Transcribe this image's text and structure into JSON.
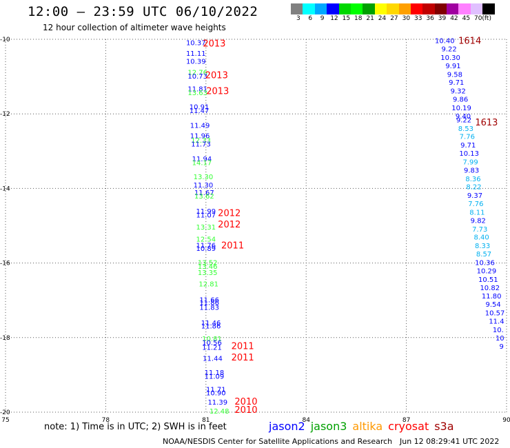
{
  "header": {
    "title": "12:00 – 23:59 UTC 06/10/2022",
    "subtitle": "12 hour collection of altimeter wave heights"
  },
  "legend": {
    "colors": [
      "#808080",
      "#00ffff",
      "#00a8ff",
      "#0000ff",
      "#00d800",
      "#00ff00",
      "#00a000",
      "#ffff00",
      "#ffd800",
      "#ffa000",
      "#ff0000",
      "#c00000",
      "#800000",
      "#a000a0",
      "#ff80ff",
      "#e0c0ff",
      "#000000"
    ],
    "labels": [
      "3",
      "6",
      "9",
      "12",
      "15",
      "18",
      "21",
      "24",
      "27",
      "30",
      "33",
      "36",
      "39",
      "42",
      "45",
      "70",
      "(ft)"
    ]
  },
  "footer": {
    "note": "note:  1) Time is in UTC;  2) SWH is in feet",
    "satellites": [
      {
        "name": "jason2",
        "color": "#0000ff"
      },
      {
        "name": "jason3",
        "color": "#00a000"
      },
      {
        "name": "altika",
        "color": "#ff9900"
      },
      {
        "name": "cryosat",
        "color": "#ff0000"
      },
      {
        "name": "s3a",
        "color": "#a00000"
      }
    ],
    "credit": "NOAA/NESDIS Center for Satellite Applications and Research",
    "timestamp": "Jun 12 08:29:41 UTC 2022"
  },
  "chart_data": {
    "type": "scatter",
    "xlim": [
      75,
      90
    ],
    "ylim": [
      -20,
      -10
    ],
    "xticks": [
      75,
      78,
      81,
      84,
      87,
      90
    ],
    "yticks": [
      -10,
      -12,
      -14,
      -16,
      -18,
      -20
    ],
    "grid": true,
    "points": [
      {
        "lon": 80.7,
        "lat": -10.08,
        "v": "10.37",
        "c": "#0000ff"
      },
      {
        "lon": 80.7,
        "lat": -10.37,
        "v": "11.11",
        "c": "#0000ff"
      },
      {
        "lon": 80.7,
        "lat": -10.58,
        "v": "10.39",
        "c": "#0000ff"
      },
      {
        "lon": 80.75,
        "lat": -10.88,
        "v": "12.76",
        "c": "#33ff33"
      },
      {
        "lon": 80.75,
        "lat": -10.98,
        "v": "10.73",
        "c": "#0000ff"
      },
      {
        "lon": 80.75,
        "lat": -11.32,
        "v": "11.81",
        "c": "#0000ff"
      },
      {
        "lon": 80.75,
        "lat": -11.42,
        "v": "13.63",
        "c": "#33ff33"
      },
      {
        "lon": 80.8,
        "lat": -11.8,
        "v": "10.91",
        "c": "#0000ff"
      },
      {
        "lon": 80.8,
        "lat": -11.9,
        "v": "11.47",
        "c": "#0000ff"
      },
      {
        "lon": 80.82,
        "lat": -12.3,
        "v": "11.49",
        "c": "#0000ff"
      },
      {
        "lon": 80.82,
        "lat": -12.58,
        "v": "11.96",
        "c": "#0000ff"
      },
      {
        "lon": 80.85,
        "lat": -12.7,
        "v": "12.33",
        "c": "#33ff33"
      },
      {
        "lon": 80.85,
        "lat": -12.8,
        "v": "11.73",
        "c": "#0000ff"
      },
      {
        "lon": 80.88,
        "lat": -13.2,
        "v": "11.94",
        "c": "#0000ff"
      },
      {
        "lon": 80.88,
        "lat": -13.3,
        "v": "14.17",
        "c": "#33ff33"
      },
      {
        "lon": 80.92,
        "lat": -13.68,
        "v": "13.30",
        "c": "#33ff33"
      },
      {
        "lon": 80.92,
        "lat": -13.9,
        "v": "11.30",
        "c": "#0000ff"
      },
      {
        "lon": 80.95,
        "lat": -14.1,
        "v": "11.67",
        "c": "#0000ff"
      },
      {
        "lon": 80.95,
        "lat": -14.2,
        "v": "13.62",
        "c": "#33ff33"
      },
      {
        "lon": 81.0,
        "lat": -14.6,
        "v": "11.99",
        "c": "#0000ff"
      },
      {
        "lon": 81.0,
        "lat": -14.7,
        "v": "11.07",
        "c": "#0000ff"
      },
      {
        "lon": 81.0,
        "lat": -15.03,
        "v": "13.31",
        "c": "#33ff33"
      },
      {
        "lon": 81.0,
        "lat": -15.35,
        "v": "12.54",
        "c": "#33ff33"
      },
      {
        "lon": 81.0,
        "lat": -15.52,
        "v": "11.76",
        "c": "#0000ff"
      },
      {
        "lon": 81.0,
        "lat": -15.6,
        "v": "10.89",
        "c": "#0000ff"
      },
      {
        "lon": 81.05,
        "lat": -15.98,
        "v": "13.52",
        "c": "#33ff33"
      },
      {
        "lon": 81.05,
        "lat": -16.08,
        "v": "13.46",
        "c": "#33ff33"
      },
      {
        "lon": 81.05,
        "lat": -16.25,
        "v": "13.35",
        "c": "#33ff33"
      },
      {
        "lon": 81.08,
        "lat": -16.55,
        "v": "12.81",
        "c": "#33ff33"
      },
      {
        "lon": 81.1,
        "lat": -16.98,
        "v": "11.66",
        "c": "#0000ff"
      },
      {
        "lon": 81.1,
        "lat": -17.05,
        "v": "11.86",
        "c": "#0000ff"
      },
      {
        "lon": 81.1,
        "lat": -17.18,
        "v": "11.83",
        "c": "#0000ff"
      },
      {
        "lon": 81.15,
        "lat": -17.6,
        "v": "11.46",
        "c": "#0000ff"
      },
      {
        "lon": 81.15,
        "lat": -17.68,
        "v": "11.86",
        "c": "#0000ff"
      },
      {
        "lon": 81.18,
        "lat": -18.02,
        "v": "10.81",
        "c": "#33ff33"
      },
      {
        "lon": 81.18,
        "lat": -18.12,
        "v": "10.56",
        "c": "#0000ff"
      },
      {
        "lon": 81.18,
        "lat": -18.25,
        "v": "11.21",
        "c": "#0000ff"
      },
      {
        "lon": 81.2,
        "lat": -18.55,
        "v": "11.44",
        "c": "#0000ff"
      },
      {
        "lon": 81.25,
        "lat": -18.93,
        "v": "11.18",
        "c": "#0000ff"
      },
      {
        "lon": 81.25,
        "lat": -19.03,
        "v": "11.09",
        "c": "#0000ff"
      },
      {
        "lon": 81.3,
        "lat": -19.38,
        "v": "11.71",
        "c": "#0000ff"
      },
      {
        "lon": 81.3,
        "lat": -19.47,
        "v": "10.90",
        "c": "#0000ff"
      },
      {
        "lon": 81.35,
        "lat": -19.72,
        "v": "11.39",
        "c": "#0000ff"
      },
      {
        "lon": 81.4,
        "lat": -19.96,
        "v": "12.48",
        "c": "#33ff33"
      },
      {
        "lon": 88.15,
        "lat": -10.03,
        "v": "10.40",
        "c": "#0000ff"
      },
      {
        "lon": 88.28,
        "lat": -10.25,
        "v": "9.22",
        "c": "#0000ff"
      },
      {
        "lon": 88.32,
        "lat": -10.48,
        "v": "10.30",
        "c": "#0000ff"
      },
      {
        "lon": 88.4,
        "lat": -10.7,
        "v": "9.91",
        "c": "#0000ff"
      },
      {
        "lon": 88.45,
        "lat": -10.93,
        "v": "9.58",
        "c": "#0000ff"
      },
      {
        "lon": 88.5,
        "lat": -11.15,
        "v": "9.71",
        "c": "#0000ff"
      },
      {
        "lon": 88.55,
        "lat": -11.38,
        "v": "9.32",
        "c": "#0000ff"
      },
      {
        "lon": 88.62,
        "lat": -11.6,
        "v": "9.86",
        "c": "#0000ff"
      },
      {
        "lon": 88.65,
        "lat": -11.83,
        "v": "10.19",
        "c": "#0000ff"
      },
      {
        "lon": 88.7,
        "lat": -12.05,
        "v": "9.40",
        "c": "#0000ff"
      },
      {
        "lon": 88.72,
        "lat": -12.15,
        "v": "9.22",
        "c": "#0000ff"
      },
      {
        "lon": 88.78,
        "lat": -12.38,
        "v": "8.53",
        "c": "#00b0f0"
      },
      {
        "lon": 88.82,
        "lat": -12.6,
        "v": "7.76",
        "c": "#00b0f0"
      },
      {
        "lon": 88.85,
        "lat": -12.83,
        "v": "9.71",
        "c": "#0000ff"
      },
      {
        "lon": 88.88,
        "lat": -13.05,
        "v": "10.13",
        "c": "#0000ff"
      },
      {
        "lon": 88.92,
        "lat": -13.28,
        "v": "7.99",
        "c": "#00b0f0"
      },
      {
        "lon": 88.95,
        "lat": -13.5,
        "v": "9.83",
        "c": "#0000ff"
      },
      {
        "lon": 89.0,
        "lat": -13.73,
        "v": "8.36",
        "c": "#00b0f0"
      },
      {
        "lon": 89.02,
        "lat": -13.95,
        "v": "8.22",
        "c": "#00b0f0"
      },
      {
        "lon": 89.05,
        "lat": -14.18,
        "v": "9.37",
        "c": "#0000ff"
      },
      {
        "lon": 89.08,
        "lat": -14.4,
        "v": "7.76",
        "c": "#00b0f0"
      },
      {
        "lon": 89.12,
        "lat": -14.63,
        "v": "8.11",
        "c": "#00b0f0"
      },
      {
        "lon": 89.15,
        "lat": -14.85,
        "v": "9.82",
        "c": "#0000ff"
      },
      {
        "lon": 89.2,
        "lat": -15.08,
        "v": "7.73",
        "c": "#00b0f0"
      },
      {
        "lon": 89.25,
        "lat": -15.3,
        "v": "8.40",
        "c": "#00b0f0"
      },
      {
        "lon": 89.28,
        "lat": -15.53,
        "v": "8.33",
        "c": "#00b0f0"
      },
      {
        "lon": 89.32,
        "lat": -15.75,
        "v": "8.57",
        "c": "#00b0f0"
      },
      {
        "lon": 89.35,
        "lat": -15.98,
        "v": "10.36",
        "c": "#0000ff"
      },
      {
        "lon": 89.4,
        "lat": -16.2,
        "v": "10.29",
        "c": "#0000ff"
      },
      {
        "lon": 89.45,
        "lat": -16.43,
        "v": "10.51",
        "c": "#0000ff"
      },
      {
        "lon": 89.5,
        "lat": -16.65,
        "v": "10.82",
        "c": "#0000ff"
      },
      {
        "lon": 89.55,
        "lat": -16.88,
        "v": "11.80",
        "c": "#0000ff"
      },
      {
        "lon": 89.6,
        "lat": -17.1,
        "v": "9.54",
        "c": "#0000ff"
      },
      {
        "lon": 89.65,
        "lat": -17.33,
        "v": "10.57",
        "c": "#0000ff"
      },
      {
        "lon": 89.7,
        "lat": -17.55,
        "v": "11.4",
        "c": "#0000ff"
      },
      {
        "lon": 89.75,
        "lat": -17.78,
        "v": "10.",
        "c": "#0000ff"
      },
      {
        "lon": 89.8,
        "lat": -18.0,
        "v": "10",
        "c": "#0000ff"
      },
      {
        "lon": 89.85,
        "lat": -18.23,
        "v": "9",
        "c": "#0000ff"
      }
    ],
    "time_labels": [
      {
        "lon": 81.25,
        "lat": -10.1,
        "text": "2013",
        "c": "#ff0000"
      },
      {
        "lon": 81.32,
        "lat": -10.95,
        "text": "2013",
        "c": "#ff0000"
      },
      {
        "lon": 81.35,
        "lat": -11.38,
        "text": "2013",
        "c": "#ff0000"
      },
      {
        "lon": 81.7,
        "lat": -14.65,
        "text": "2012",
        "c": "#ff0000"
      },
      {
        "lon": 81.7,
        "lat": -14.95,
        "text": "2012",
        "c": "#ff0000"
      },
      {
        "lon": 81.8,
        "lat": -15.52,
        "text": "2011",
        "c": "#ff0000"
      },
      {
        "lon": 82.1,
        "lat": -18.22,
        "text": "2011",
        "c": "#ff0000"
      },
      {
        "lon": 82.1,
        "lat": -18.52,
        "text": "2011",
        "c": "#ff0000"
      },
      {
        "lon": 82.2,
        "lat": -19.7,
        "text": "2010",
        "c": "#ff0000"
      },
      {
        "lon": 82.2,
        "lat": -19.93,
        "text": "2010",
        "c": "#ff0000"
      },
      {
        "lon": 88.9,
        "lat": -10.03,
        "text": "1614",
        "c": "#a00000"
      },
      {
        "lon": 89.4,
        "lat": -12.22,
        "text": "1613",
        "c": "#a00000"
      }
    ]
  }
}
